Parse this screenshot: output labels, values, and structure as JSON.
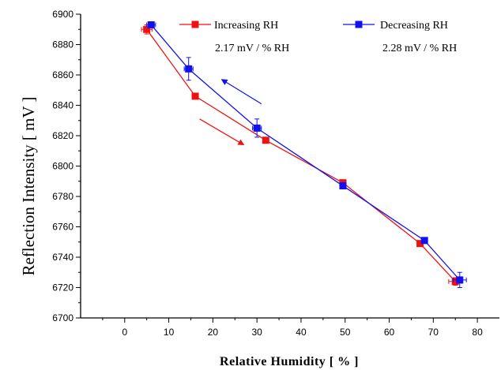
{
  "colors": {
    "increasing": "#ee1111",
    "decreasing": "#1111ee",
    "axis": "#000000"
  },
  "chart_data": {
    "type": "scatter",
    "title": "",
    "xlabel": "Relative Humidity [ % ]",
    "ylabel": "Reflection Intensity [ mV ]",
    "xlim": [
      -10,
      85
    ],
    "ylim": [
      6700,
      6900
    ],
    "xticks": [
      0,
      10,
      20,
      30,
      40,
      50,
      60,
      70,
      80
    ],
    "yticks": [
      6700,
      6720,
      6740,
      6760,
      6780,
      6800,
      6820,
      6840,
      6860,
      6880,
      6900
    ],
    "grid": false,
    "legend_position": "top-right",
    "series": [
      {
        "name": "Increasing RH",
        "color": "#ee1111",
        "slope_label": "2.17 mV / % RH",
        "x": [
          5,
          16,
          32,
          49.5,
          67,
          75
        ],
        "y": [
          6890,
          6846,
          6817,
          6789,
          6749,
          6724
        ],
        "xerr": [
          1.2,
          0.5,
          0.5,
          0.5,
          0.5,
          1.5
        ],
        "yerr": [
          3,
          1,
          1,
          1,
          1,
          2.5
        ]
      },
      {
        "name": "Decreasing RH",
        "color": "#1111ee",
        "slope_label": "2.28 mV / % RH",
        "x": [
          6,
          14.5,
          30,
          49.5,
          68,
          76
        ],
        "y": [
          6893,
          6864,
          6825,
          6787,
          6751,
          6725
        ],
        "xerr": [
          1,
          1,
          1,
          0.5,
          0.5,
          1.5
        ],
        "yerr": [
          1,
          7.5,
          6,
          1,
          1,
          5
        ]
      }
    ],
    "annotations": [
      {
        "type": "arrow",
        "color": "#1111ee",
        "from": [
          31,
          6841
        ],
        "to": [
          22,
          6857
        ]
      },
      {
        "type": "arrow",
        "color": "#ee1111",
        "from": [
          17,
          6831
        ],
        "to": [
          27,
          6814
        ]
      }
    ]
  }
}
